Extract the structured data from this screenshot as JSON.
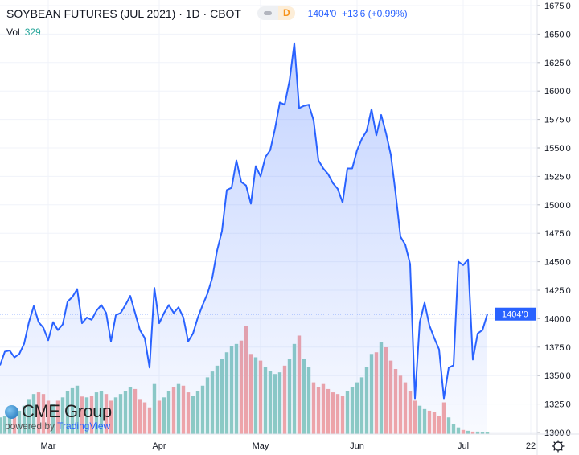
{
  "header": {
    "title": "SOYBEAN FUTURES (JUL 2021) · 1D · CBOT",
    "badge_letter": "D",
    "last": "1404'0",
    "change": "+13'6 (+0.99%)",
    "vol_label": "Vol",
    "vol_value": "329"
  },
  "logo": {
    "brand": "CME Group",
    "powered": "powered by",
    "tv": "TradingView"
  },
  "colors": {
    "line": "#2962ff",
    "vol_up": "#8fcdc3",
    "vol_down": "#f4a6a6",
    "grid": "#f0f3fa"
  },
  "chart_data": {
    "type": "area",
    "ylim": [
      1300,
      1675
    ],
    "y_ticks": [
      "1675'0",
      "1650'0",
      "1625'0",
      "1600'0",
      "1575'0",
      "1550'0",
      "1525'0",
      "1500'0",
      "1475'0",
      "1450'0",
      "1425'0",
      "1400'0",
      "1375'0",
      "1350'0",
      "1325'0",
      "1300'0"
    ],
    "y_tick_values": [
      1675,
      1650,
      1625,
      1600,
      1575,
      1550,
      1525,
      1500,
      1475,
      1450,
      1425,
      1400,
      1375,
      1350,
      1325,
      1300
    ],
    "x_ticks": [
      {
        "label": "Mar",
        "index": 10
      },
      {
        "label": "Apr",
        "index": 33
      },
      {
        "label": "May",
        "index": 54
      },
      {
        "label": "Jun",
        "index": 74
      },
      {
        "label": "Jul",
        "index": 96
      },
      {
        "label": "22",
        "index": 110
      }
    ],
    "last_label": "1404'0",
    "last_value": 1404,
    "price": [
      1359,
      1371,
      1372,
      1366,
      1369,
      1378,
      1397,
      1411,
      1397,
      1392,
      1381,
      1397,
      1390,
      1395,
      1415,
      1419,
      1426,
      1396,
      1401,
      1399,
      1407,
      1412,
      1405,
      1380,
      1403,
      1405,
      1412,
      1420,
      1405,
      1390,
      1383,
      1357,
      1427,
      1396,
      1405,
      1412,
      1405,
      1410,
      1401,
      1380,
      1387,
      1401,
      1412,
      1422,
      1436,
      1460,
      1477,
      1513,
      1515,
      1539,
      1520,
      1517,
      1501,
      1534,
      1525,
      1542,
      1548,
      1567,
      1590,
      1588,
      1609,
      1642,
      1585,
      1587,
      1588,
      1574,
      1539,
      1532,
      1527,
      1519,
      1514,
      1502,
      1532,
      1532,
      1548,
      1558,
      1565,
      1584,
      1561,
      1579,
      1563,
      1544,
      1510,
      1472,
      1465,
      1448,
      1330,
      1397,
      1414,
      1394,
      1383,
      1373,
      1330,
      1357,
      1359,
      1450,
      1447,
      1452,
      1364,
      1387,
      1390,
      1404
    ],
    "volume": [
      20,
      22,
      22,
      25,
      28,
      34,
      42,
      48,
      50,
      48,
      40,
      36,
      40,
      44,
      52,
      55,
      58,
      45,
      44,
      46,
      50,
      52,
      48,
      40,
      44,
      48,
      52,
      56,
      54,
      42,
      38,
      32,
      60,
      40,
      44,
      52,
      56,
      60,
      58,
      50,
      46,
      52,
      58,
      68,
      75,
      82,
      90,
      98,
      105,
      108,
      112,
      130,
      96,
      92,
      88,
      80,
      76,
      72,
      74,
      82,
      90,
      108,
      118,
      90,
      80,
      62,
      56,
      60,
      54,
      50,
      48,
      46,
      52,
      56,
      62,
      68,
      80,
      96,
      98,
      110,
      104,
      88,
      78,
      70,
      62,
      52,
      40,
      34,
      30,
      28,
      26,
      22,
      38,
      20,
      12,
      8,
      5,
      4,
      3,
      3,
      2,
      2
    ],
    "legend": "none",
    "grid": true
  }
}
